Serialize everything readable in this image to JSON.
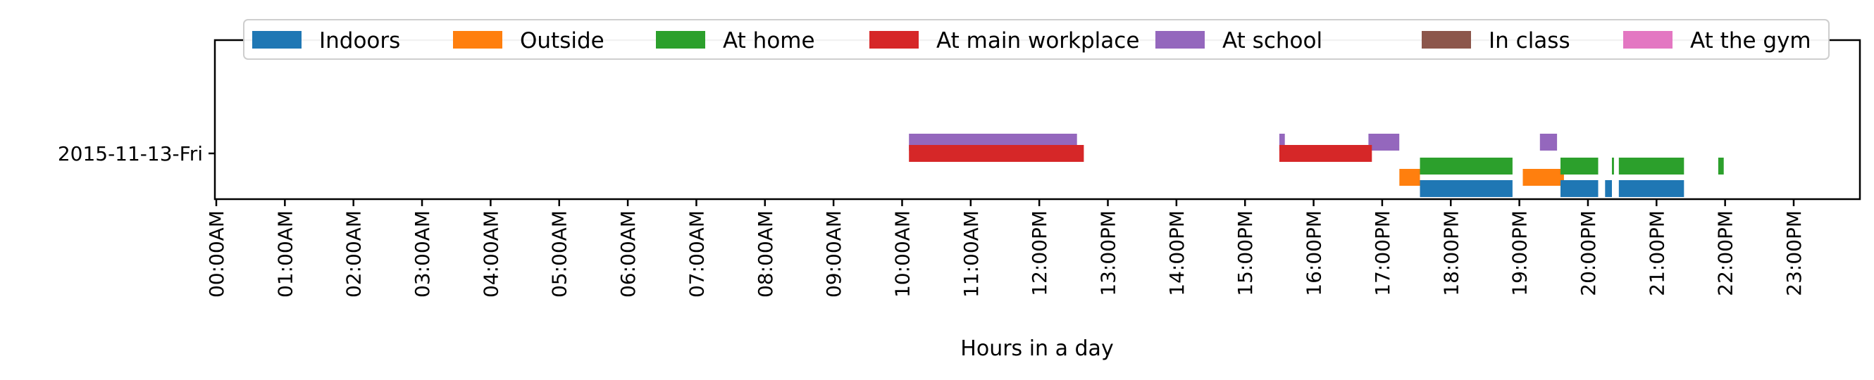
{
  "chart_data": {
    "type": "timeline",
    "title": "",
    "xlabel": "Hours in a day",
    "ylabel": "",
    "x_unit": "hour of day",
    "xlim": [
      0,
      24
    ],
    "x_ticks": [
      "00:00AM",
      "01:00AM",
      "02:00AM",
      "03:00AM",
      "04:00AM",
      "05:00AM",
      "06:00AM",
      "07:00AM",
      "08:00AM",
      "09:00AM",
      "10:00AM",
      "11:00AM",
      "12:00PM",
      "13:00PM",
      "14:00PM",
      "15:00PM",
      "16:00PM",
      "17:00PM",
      "18:00PM",
      "19:00PM",
      "20:00PM",
      "21:00PM",
      "22:00PM",
      "23:00PM"
    ],
    "y_categories": [
      "2015-11-13-Fri"
    ],
    "legend_position": "top",
    "grid": false,
    "series": [
      {
        "name": "Indoors",
        "color": "#1f77b4",
        "intervals": [
          [
            17.55,
            18.9
          ],
          [
            19.6,
            20.15
          ],
          [
            20.25,
            20.35
          ],
          [
            20.45,
            21.4
          ]
        ]
      },
      {
        "name": "Outside",
        "color": "#ff7f0e",
        "intervals": [
          [
            17.25,
            17.55
          ],
          [
            19.05,
            19.65
          ]
        ]
      },
      {
        "name": "At home",
        "color": "#2ca02c",
        "intervals": [
          [
            17.55,
            18.9
          ],
          [
            19.6,
            20.15
          ],
          [
            20.35,
            20.38
          ],
          [
            20.45,
            21.4
          ],
          [
            21.9,
            21.98
          ]
        ]
      },
      {
        "name": "At main workplace",
        "color": "#d62728",
        "intervals": [
          [
            10.1,
            12.65
          ],
          [
            15.5,
            16.85
          ]
        ]
      },
      {
        "name": "At school",
        "color": "#9467bd",
        "intervals": [
          [
            10.1,
            12.55
          ],
          [
            15.5,
            15.58
          ],
          [
            16.8,
            17.25
          ],
          [
            19.3,
            19.55
          ]
        ]
      },
      {
        "name": "In class",
        "color": "#8c564b",
        "intervals": []
      },
      {
        "name": "At the gym",
        "color": "#e377c2",
        "intervals": []
      }
    ]
  }
}
